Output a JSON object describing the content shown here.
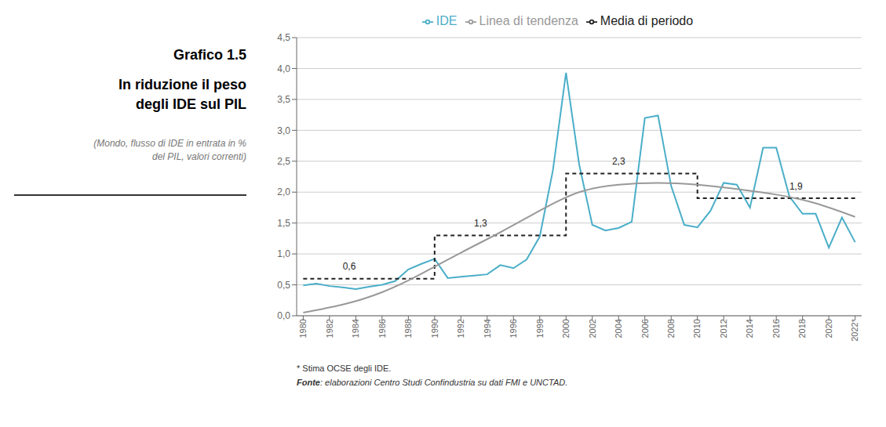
{
  "chart_data": {
    "type": "line",
    "title": [
      "Grafico 1.5",
      "In riduzione il peso\ndegli IDE sul PIL"
    ],
    "subtitle": "(Mondo, flusso di IDE in entrata in %\ndel PIL, valori correnti)",
    "annotations": [
      {
        "text": "0,6",
        "x": 1983.5,
        "y": 0.68
      },
      {
        "text": "1,3",
        "x": 1993.5,
        "y": 1.38
      },
      {
        "text": "2,3",
        "x": 2004.0,
        "y": 2.38
      },
      {
        "text": "1,9",
        "x": 2017.5,
        "y": 1.98
      },
      {
        "text": "* Stima OCSE degli IDE."
      },
      {
        "text": "Fonte: elaborazioni Centro Studi Confindustria su dati FMI e UNCTAD."
      }
    ],
    "x": [
      1980,
      1981,
      1982,
      1983,
      1984,
      1985,
      1986,
      1987,
      1988,
      1989,
      1990,
      1991,
      1992,
      1993,
      1994,
      1995,
      1996,
      1997,
      1998,
      1999,
      2000,
      2001,
      2002,
      2003,
      2004,
      2005,
      2006,
      2007,
      2008,
      2009,
      2010,
      2011,
      2012,
      2013,
      2014,
      2015,
      2016,
      2017,
      2018,
      2019,
      2020,
      2021,
      2022
    ],
    "series": [
      {
        "name": "IDE",
        "color": "#4aaec8",
        "line_style": "solid",
        "values": [
          0.49,
          0.52,
          0.48,
          0.46,
          0.43,
          0.47,
          0.5,
          0.56,
          0.75,
          0.84,
          0.92,
          0.61,
          0.63,
          0.65,
          0.67,
          0.82,
          0.77,
          0.91,
          1.28,
          2.35,
          3.93,
          2.45,
          1.47,
          1.38,
          1.42,
          1.52,
          3.2,
          3.24,
          2.1,
          1.47,
          1.43,
          1.7,
          2.15,
          2.12,
          1.75,
          2.72,
          2.72,
          1.93,
          1.65,
          1.65,
          1.1,
          1.59,
          1.19
        ]
      },
      {
        "name": "Media di periodo",
        "color": "#222222",
        "line_style": "dashed",
        "type": "step",
        "values": [
          0.6,
          0.6,
          0.6,
          0.6,
          0.6,
          0.6,
          0.6,
          0.6,
          0.6,
          0.6,
          1.3,
          1.3,
          1.3,
          1.3,
          1.3,
          1.3,
          1.3,
          1.3,
          1.3,
          1.3,
          2.3,
          2.3,
          2.3,
          2.3,
          2.3,
          2.3,
          2.3,
          2.3,
          2.3,
          2.3,
          1.9,
          1.9,
          1.9,
          1.9,
          1.9,
          1.9,
          1.9,
          1.9,
          1.9,
          1.9,
          1.9,
          1.9,
          1.9
        ]
      },
      {
        "name": "Linea di tendenza",
        "color": "#999999",
        "line_style": "solid",
        "type": "spline",
        "x": [
          1980,
          1983,
          1986,
          1989,
          1992,
          1995,
          1998,
          2001,
          2004,
          2007,
          2010,
          2013,
          2016,
          2019,
          2022
        ],
        "values": [
          0.05,
          0.18,
          0.38,
          0.68,
          1.02,
          1.35,
          1.7,
          2.0,
          2.12,
          2.15,
          2.12,
          2.05,
          1.96,
          1.82,
          1.6
        ]
      }
    ],
    "xlim": [
      1979.5,
      2022.5
    ],
    "xticks": [
      1980,
      1982,
      1984,
      1986,
      1988,
      1990,
      1992,
      1994,
      1996,
      1998,
      2000,
      2002,
      2004,
      2006,
      2008,
      2010,
      2012,
      2014,
      2016,
      2018,
      2020,
      {
        "value": 2022,
        "label": "2022*"
      }
    ],
    "ylim": [
      0.0,
      4.5
    ],
    "yticks": [
      {
        "value": 0.0,
        "label": "0,0"
      },
      {
        "value": 0.5,
        "label": "0,5"
      },
      {
        "value": 1.0,
        "label": "1,0"
      },
      {
        "value": 1.5,
        "label": "1,5"
      },
      {
        "value": 2.0,
        "label": "2,0"
      },
      {
        "value": 2.5,
        "label": "2,5"
      },
      {
        "value": 3.0,
        "label": "3,0"
      },
      {
        "value": 3.5,
        "label": "3,5"
      },
      {
        "value": 4.0,
        "label": "4,0"
      },
      {
        "value": 4.5,
        "label": "4,5"
      }
    ],
    "grid": true,
    "legend": "top"
  }
}
